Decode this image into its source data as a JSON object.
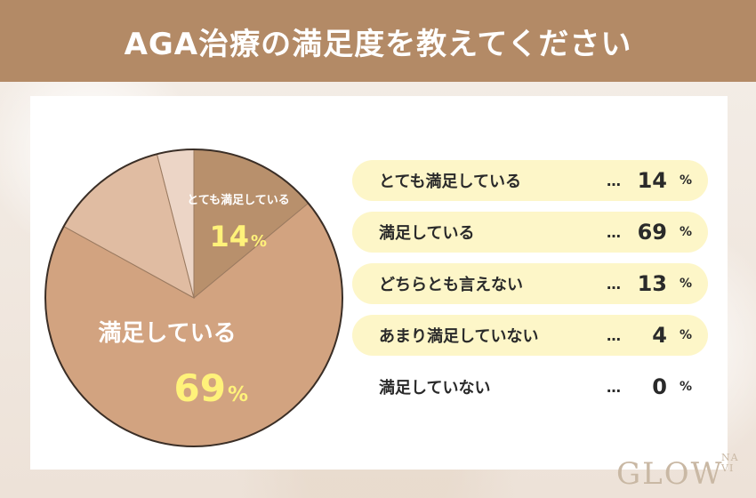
{
  "title": "AGA治療の満足度を教えてください",
  "chart_data": {
    "type": "pie",
    "categories": [
      "とても満足している",
      "満足している",
      "どちらとも言えない",
      "あまり満足していない",
      "満足していない"
    ],
    "values": [
      14,
      69,
      13,
      4,
      0
    ],
    "unit": "%",
    "colors": [
      "#b8906c",
      "#d2a380",
      "#e0bca2",
      "#ecd5c6",
      "#f3e5dc"
    ],
    "pie_labels": [
      {
        "name": "とても満足している",
        "value": "14",
        "unit": "%"
      },
      {
        "name": "満足している",
        "value": "69",
        "unit": "%"
      }
    ]
  },
  "legend": [
    {
      "label": "とても満足している",
      "value": "14",
      "unit": "%",
      "dots": "…",
      "highlight": true
    },
    {
      "label": "満足している",
      "value": "69",
      "unit": "%",
      "dots": "…",
      "highlight": true
    },
    {
      "label": "どちらとも言えない",
      "value": "13",
      "unit": "%",
      "dots": "…",
      "highlight": true
    },
    {
      "label": "あまり満足していない",
      "value": "4",
      "unit": "%",
      "dots": "…",
      "highlight": true
    },
    {
      "label": "満足していない",
      "value": "0",
      "unit": "%",
      "dots": "…",
      "highlight": false
    }
  ],
  "logo": {
    "main": "GLOW",
    "sup_top": "NA",
    "sup_bottom": "VI"
  },
  "colors": {
    "header": "#b38a66",
    "highlight_row": "#fdf6c8",
    "pie_value_text": "#fff27a"
  }
}
